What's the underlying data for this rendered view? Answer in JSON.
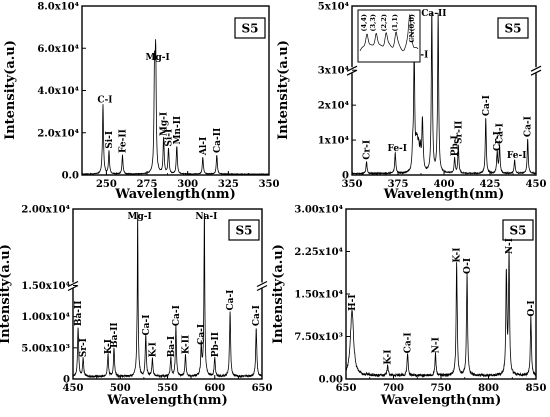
{
  "chart_data": [
    {
      "type": "line",
      "sample_label": "S5",
      "xlabel": "Wavelength(nm)",
      "ylabel": "Intensity(a.u)",
      "xlim": [
        235,
        350
      ],
      "ylim": [
        0,
        80000
      ],
      "x_ticks": [
        "250",
        "275",
        "300",
        "325",
        "350"
      ],
      "y_ticks": [
        "0.0",
        "2.0x10⁴",
        "4.0x10⁴",
        "6.0x10⁴",
        "8.0x10⁴"
      ],
      "peaks": [
        {
          "x": 247.9,
          "y": 33000,
          "label": "C-I"
        },
        {
          "x": 251.6,
          "y": 11000,
          "label": "Si-I"
        },
        {
          "x": 259.9,
          "y": 9000,
          "label": "Fe-II"
        },
        {
          "x": 279.6,
          "y": 46000,
          "label": ""
        },
        {
          "x": 280.3,
          "y": 53000,
          "label": "Mg-I"
        },
        {
          "x": 285.2,
          "y": 17000,
          "label": "Mg-I"
        },
        {
          "x": 288.2,
          "y": 12000,
          "label": "Si-I"
        },
        {
          "x": 293.3,
          "y": 13000,
          "label": "Mn-II"
        },
        {
          "x": 309.3,
          "y": 8000,
          "label": "Al-I"
        },
        {
          "x": 317.9,
          "y": 9000,
          "label": "Ca-II"
        }
      ]
    },
    {
      "type": "line",
      "sample_label": "S5",
      "xlabel": "Wavelength(nm)",
      "ylabel": "Intensity(a.u)",
      "xlim": [
        350,
        450
      ],
      "ylim_lower": [
        0,
        30000
      ],
      "ylim_upper": [
        30000,
        50000
      ],
      "axis_break": true,
      "x_ticks": [
        "350",
        "375",
        "400",
        "425",
        "450"
      ],
      "y_ticks": [
        "0",
        "1x10⁴",
        "2x10⁴",
        "3x10⁴",
        "5x10⁴"
      ],
      "peaks": [
        {
          "x": 357.9,
          "y": 3500,
          "label": "Cr-I"
        },
        {
          "x": 373.5,
          "y": 6000,
          "label": "Fe-I"
        },
        {
          "x": 383.8,
          "y": 33000,
          "label": "Mg-I"
        },
        {
          "x": 393.4,
          "y": 48000,
          "label": "Ca-II"
        },
        {
          "x": 396.8,
          "y": 47000,
          "label": ""
        },
        {
          "x": 405.8,
          "y": 4500,
          "label": "Pb-I"
        },
        {
          "x": 407.8,
          "y": 8000,
          "label": "Sr-II"
        },
        {
          "x": 422.7,
          "y": 16000,
          "label": "Ca-I"
        },
        {
          "x": 428.9,
          "y": 6000,
          "label": "Cr-I"
        },
        {
          "x": 430.2,
          "y": 8000,
          "label": "Ca-I"
        },
        {
          "x": 438.4,
          "y": 4000,
          "label": "Fe-I"
        },
        {
          "x": 445.5,
          "y": 10000,
          "label": "Ca-I"
        }
      ],
      "inset": {
        "labels": [
          "(4,4)",
          "(3,3)",
          "(2,2)",
          "(1,1)",
          "CN(0,0)"
        ]
      }
    },
    {
      "type": "line",
      "sample_label": "S5",
      "xlabel": "Wavelength(nm)",
      "ylabel": "Intensity(a.u)",
      "xlim": [
        450,
        650
      ],
      "ylim_lower": [
        0,
        15000
      ],
      "ylim_upper": [
        15000,
        20000
      ],
      "axis_break": true,
      "x_ticks": [
        "450",
        "500",
        "550",
        "600",
        "650"
      ],
      "y_ticks": [
        "0",
        "5.00x10³",
        "1.00x10⁴",
        "1.50x10⁴",
        "2.00x10⁴"
      ],
      "peaks": [
        {
          "x": 455.4,
          "y": 8000,
          "label": "Ba-II"
        },
        {
          "x": 460.7,
          "y": 3000,
          "label": "Sr-I"
        },
        {
          "x": 487.0,
          "y": 3500,
          "label": "K-I"
        },
        {
          "x": 493.4,
          "y": 4500,
          "label": "Ba-II"
        },
        {
          "x": 518.4,
          "y": 19500,
          "label": "Mg-I"
        },
        {
          "x": 527.0,
          "y": 6500,
          "label": "Ca-I"
        },
        {
          "x": 534.0,
          "y": 3000,
          "label": "K-I"
        },
        {
          "x": 553.5,
          "y": 3000,
          "label": "Ba-I"
        },
        {
          "x": 558.9,
          "y": 8000,
          "label": "Ca-I"
        },
        {
          "x": 569.0,
          "y": 3500,
          "label": "K-II"
        },
        {
          "x": 585.7,
          "y": 5000,
          "label": "Ca-I"
        },
        {
          "x": 589.0,
          "y": 19500,
          "label": "Na-I"
        },
        {
          "x": 600.0,
          "y": 3000,
          "label": "Pb-II"
        },
        {
          "x": 616.2,
          "y": 10500,
          "label": "Ca-I"
        },
        {
          "x": 643.9,
          "y": 8000,
          "label": "Ca-I"
        }
      ]
    },
    {
      "type": "line",
      "sample_label": "S5",
      "xlabel": "Wavelength(nm)",
      "ylabel": "Intensity(a.u)",
      "xlim": [
        650,
        850
      ],
      "ylim": [
        0,
        30000
      ],
      "x_ticks": [
        "650",
        "700",
        "750",
        "800",
        "850"
      ],
      "y_ticks": [
        "0.00",
        "7.50x10³",
        "1.50x10⁴",
        "2.25x10⁴",
        "3.00x10⁴"
      ],
      "peaks": [
        {
          "x": 656.3,
          "y": 11500,
          "label": "H-I"
        },
        {
          "x": 693.8,
          "y": 2000,
          "label": "K-I"
        },
        {
          "x": 714.8,
          "y": 4000,
          "label": "Ca-I"
        },
        {
          "x": 744.2,
          "y": 4000,
          "label": "N-I"
        },
        {
          "x": 766.5,
          "y": 20000,
          "label": "K-I"
        },
        {
          "x": 777.4,
          "y": 18000,
          "label": "O-I"
        },
        {
          "x": 818.8,
          "y": 18000,
          "label": ""
        },
        {
          "x": 821.6,
          "y": 21500,
          "label": "N-I"
        },
        {
          "x": 844.6,
          "y": 10500,
          "label": "O-I"
        }
      ]
    }
  ]
}
